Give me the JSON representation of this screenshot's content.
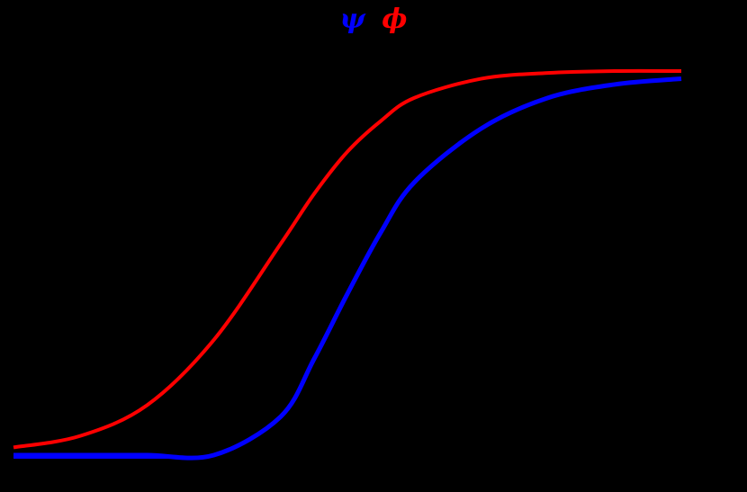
{
  "colors": {
    "background": "#000000",
    "psi": "#0000ff",
    "phi": "#ff0000"
  },
  "chart_data": {
    "type": "line",
    "title": "ψ ϕ",
    "title_parts": [
      {
        "text": "ψ",
        "color": "#0000ff"
      },
      {
        "text": "ϕ",
        "color": "#ff0000"
      }
    ],
    "xlabel": "",
    "ylabel": "",
    "grid": false,
    "legend": "none (title glyphs colored to match series)",
    "xlim": [
      0,
      1
    ],
    "ylim": [
      0,
      1
    ],
    "x": [
      0.0,
      0.1,
      0.2,
      0.3,
      0.4,
      0.45,
      0.5,
      0.55,
      0.6,
      0.7,
      0.8,
      0.9,
      1.0
    ],
    "series": [
      {
        "name": "ϕ",
        "color": "#ff0000",
        "values": [
          0.02,
          0.05,
          0.13,
          0.3,
          0.55,
          0.68,
          0.79,
          0.87,
          0.93,
          0.98,
          0.995,
          1.0,
          1.0
        ]
      },
      {
        "name": "ψ",
        "color": "#0000ff",
        "values": [
          0.0,
          0.0,
          0.0,
          0.0,
          0.1,
          0.25,
          0.42,
          0.58,
          0.71,
          0.85,
          0.93,
          0.965,
          0.98
        ]
      }
    ],
    "annotations": []
  }
}
